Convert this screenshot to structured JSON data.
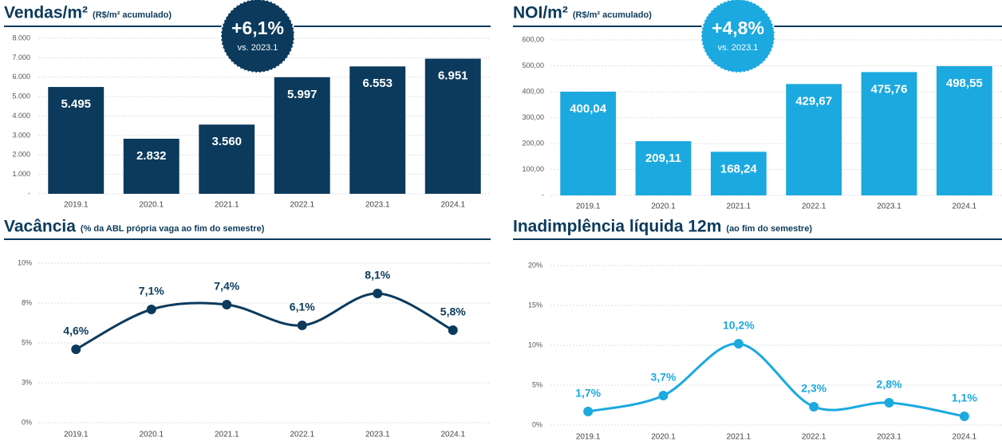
{
  "chart_data": [
    {
      "type": "bar",
      "title": "Vendas/m²",
      "subtitle": "(R$/m² acumulado)",
      "annotations": [
        "+6,1%",
        "vs. 2023.1"
      ],
      "categories": [
        "2019.1",
        "2020.1",
        "2021.1",
        "2022.1",
        "2023.1",
        "2024.1"
      ],
      "values": [
        5495,
        2832,
        3560,
        5997,
        6553,
        6951
      ],
      "value_labels": [
        "5.495",
        "2.832",
        "3.560",
        "5.997",
        "6.553",
        "6.951"
      ],
      "color": "#0b3a5c",
      "ylim": [
        0,
        8000
      ],
      "yticks": [
        {
          "value": 0,
          "label": "-"
        },
        {
          "value": 1000,
          "label": "1.000"
        },
        {
          "value": 2000,
          "label": "2.000"
        },
        {
          "value": 3000,
          "label": "3.000"
        },
        {
          "value": 4000,
          "label": "4.000"
        },
        {
          "value": 5000,
          "label": "5.000"
        },
        {
          "value": 6000,
          "label": "6.000"
        },
        {
          "value": 7000,
          "label": "7.000"
        },
        {
          "value": 8000,
          "label": "8.000"
        }
      ],
      "grid": true
    },
    {
      "type": "bar",
      "title": "NOI/m²",
      "subtitle": "(R$/m² acumulado)",
      "annotations": [
        "+4,8%",
        "vs. 2023.1"
      ],
      "categories": [
        "2019.1",
        "2020.1",
        "2021.1",
        "2022.1",
        "2023.1",
        "2024.1"
      ],
      "values": [
        400.04,
        209.11,
        168.24,
        429.67,
        475.76,
        498.55
      ],
      "value_labels": [
        "400,04",
        "209,11",
        "168,24",
        "429,67",
        "475,76",
        "498,55"
      ],
      "color": "#1ba9e0",
      "ylim": [
        0,
        600
      ],
      "yticks": [
        {
          "value": 0,
          "label": "-"
        },
        {
          "value": 100,
          "label": "100,00"
        },
        {
          "value": 200,
          "label": "200,00"
        },
        {
          "value": 300,
          "label": "300,00"
        },
        {
          "value": 400,
          "label": "400,00"
        },
        {
          "value": 500,
          "label": "500,00"
        },
        {
          "value": 600,
          "label": "600,00"
        }
      ],
      "grid": true
    },
    {
      "type": "line",
      "title": "Vacância",
      "subtitle": "(% da ABL própria vaga ao fim do semestre)",
      "categories": [
        "2019.1",
        "2020.1",
        "2021.1",
        "2022.1",
        "2023.1",
        "2024.1"
      ],
      "values": [
        4.6,
        7.1,
        7.4,
        6.1,
        8.1,
        5.8
      ],
      "value_labels": [
        "4,6%",
        "7,1%",
        "7,4%",
        "6,1%",
        "8,1%",
        "5,8%"
      ],
      "color": "#0b3a5c",
      "ylim": [
        0,
        10
      ],
      "yticks": [
        {
          "value": 0,
          "label": "0%"
        },
        {
          "value": 2.5,
          "label": "3%"
        },
        {
          "value": 5,
          "label": "5%"
        },
        {
          "value": 7.5,
          "label": "8%"
        },
        {
          "value": 10,
          "label": "10%"
        }
      ],
      "grid": true
    },
    {
      "type": "line",
      "title": "Inadimplência líquida 12m",
      "subtitle": "(ao fim do semestre)",
      "categories": [
        "2019.1",
        "2020.1",
        "2021.1",
        "2022.1",
        "2023.1",
        "2024.1"
      ],
      "values": [
        1.7,
        3.7,
        10.2,
        2.3,
        2.8,
        1.1
      ],
      "value_labels": [
        "1,7%",
        "3,7%",
        "10,2%",
        "2,3%",
        "2,8%",
        "1,1%"
      ],
      "color": "#1ba9e0",
      "ylim": [
        0,
        20
      ],
      "yticks": [
        {
          "value": 0,
          "label": "0%"
        },
        {
          "value": 5,
          "label": "5%"
        },
        {
          "value": 10,
          "label": "10%"
        },
        {
          "value": 15,
          "label": "15%"
        },
        {
          "value": 20,
          "label": "20%"
        }
      ],
      "grid": true
    }
  ]
}
